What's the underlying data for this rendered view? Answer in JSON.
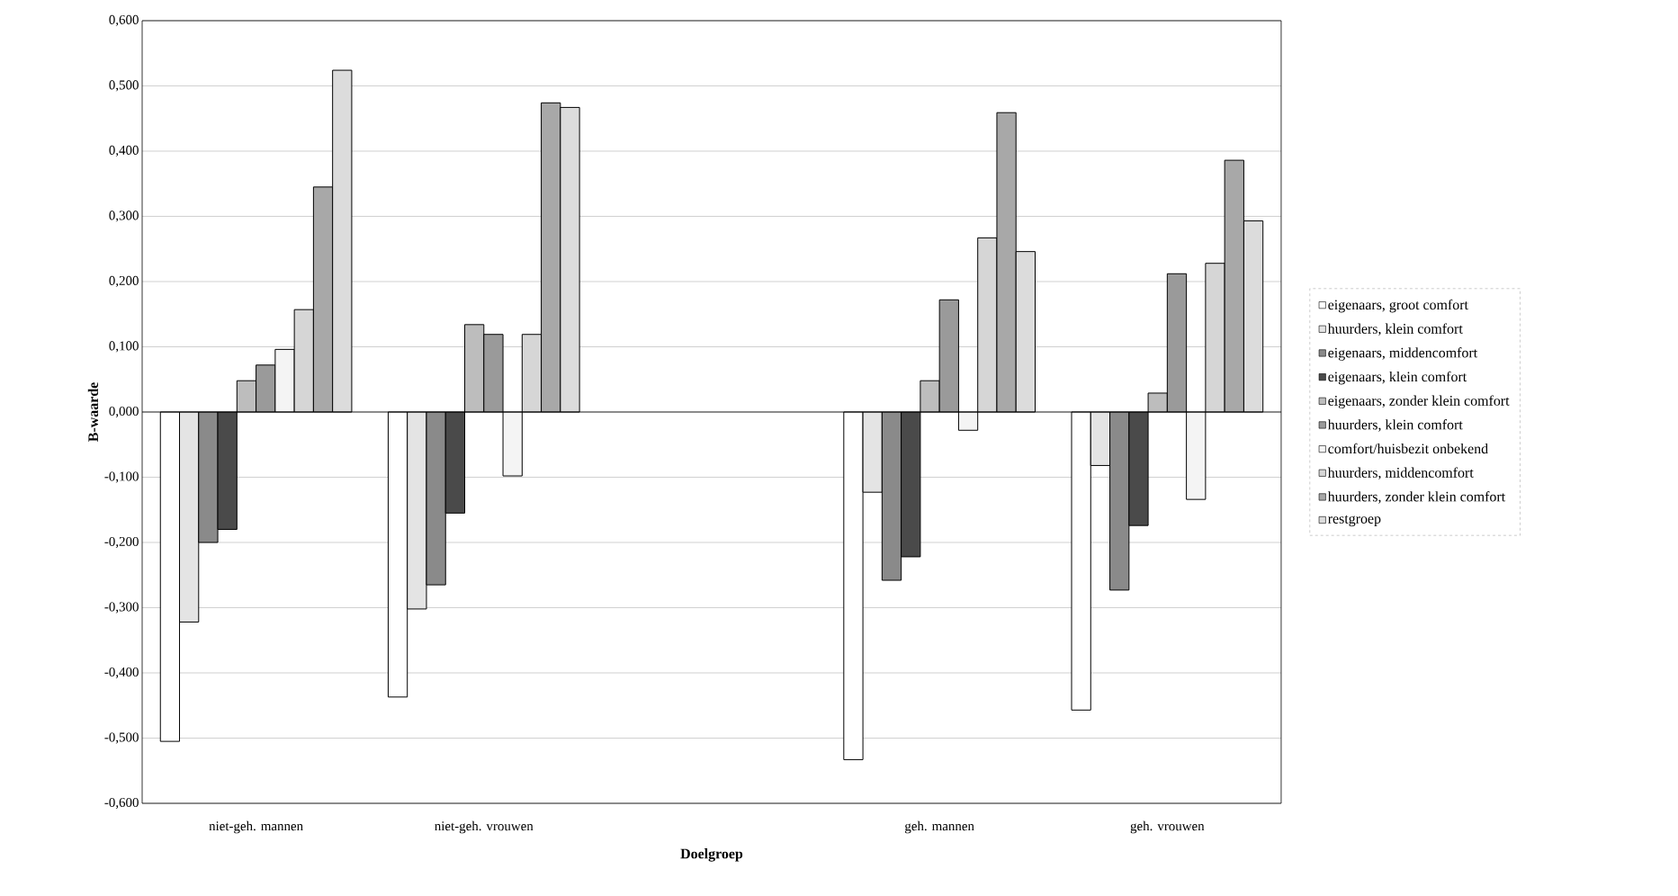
{
  "chart_data": {
    "type": "bar",
    "xlabel": "Doelgroep",
    "ylabel": "B-waarde",
    "categories": [
      "niet-geh. mannen",
      "niet-geh. vrouwen",
      null,
      "geh. mannen",
      "geh. vrouwen"
    ],
    "series": [
      {
        "name": "eigenaars, groot comfort",
        "color": "#ffffff",
        "values": [
          -0.505,
          -0.437,
          null,
          -0.533,
          -0.457
        ]
      },
      {
        "name": "huurders, klein comfort",
        "color": "#e4e4e4",
        "values": [
          -0.322,
          -0.302,
          null,
          -0.123,
          -0.082
        ]
      },
      {
        "name": "eigenaars, middencomfort",
        "color": "#8a8a8a",
        "values": [
          -0.2,
          -0.265,
          null,
          -0.258,
          -0.273
        ]
      },
      {
        "name": "eigenaars, klein comfort",
        "color": "#4a4a4a",
        "values": [
          -0.18,
          -0.155,
          null,
          -0.222,
          -0.174
        ]
      },
      {
        "name": "eigenaars, zonder klein comfort",
        "color": "#bdbdbd",
        "values": [
          0.048,
          0.134,
          null,
          0.048,
          0.029
        ]
      },
      {
        "name": "huurders, klein comfort",
        "color": "#9a9a9a",
        "values": [
          0.072,
          0.119,
          null,
          0.172,
          0.212
        ]
      },
      {
        "name": "comfort/huisbezit onbekend",
        "color": "#f4f4f4",
        "values": [
          0.096,
          -0.098,
          null,
          -0.028,
          -0.134
        ]
      },
      {
        "name": "huurders, middencomfort",
        "color": "#d6d6d6",
        "values": [
          0.157,
          0.119,
          null,
          0.267,
          0.228
        ]
      },
      {
        "name": "huurders, zonder klein comfort",
        "color": "#a8a8a8",
        "values": [
          0.345,
          0.474,
          null,
          0.459,
          0.386
        ]
      },
      {
        "name": "restgroep",
        "color": "#dcdcdc",
        "values": [
          0.524,
          0.467,
          null,
          0.246,
          0.293
        ]
      }
    ],
    "ylim": [
      -0.6,
      0.6
    ],
    "yticks": [
      {
        "value": -0.6,
        "label": "-0,600"
      },
      {
        "value": -0.5,
        "label": "-0,500"
      },
      {
        "value": -0.4,
        "label": "-0,400"
      },
      {
        "value": -0.3,
        "label": "-0,300"
      },
      {
        "value": -0.2,
        "label": "-0,200"
      },
      {
        "value": -0.1,
        "label": "-0,100"
      },
      {
        "value": 0,
        "label": "0,000"
      },
      {
        "value": 0.1,
        "label": "0,100"
      },
      {
        "value": 0.2,
        "label": "0,200"
      },
      {
        "value": 0.3,
        "label": "0,300"
      },
      {
        "value": 0.4,
        "label": "0,400"
      },
      {
        "value": 0.5,
        "label": "0,500"
      },
      {
        "value": 0.6,
        "label": "0,600"
      }
    ],
    "grid": "y",
    "legend": "right"
  }
}
